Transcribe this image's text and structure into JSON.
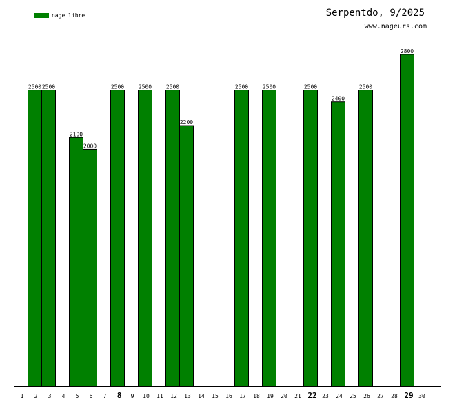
{
  "chart_data": {
    "type": "bar",
    "title": "Serpentdo, 9/2025",
    "subtitle": "www.nageurs.com",
    "legend": {
      "position": "top-left",
      "label": "nage libre",
      "color": "#008000"
    },
    "categories": [
      "1",
      "2",
      "3",
      "4",
      "5",
      "6",
      "7",
      "8",
      "9",
      "10",
      "11",
      "12",
      "13",
      "14",
      "15",
      "16",
      "17",
      "18",
      "19",
      "20",
      "21",
      "22",
      "23",
      "24",
      "25",
      "26",
      "27",
      "28",
      "29",
      "30"
    ],
    "highlighted_categories": [
      "8",
      "22",
      "29"
    ],
    "series": [
      {
        "name": "nage libre",
        "color": "#008000",
        "values": [
          0,
          2500,
          2500,
          0,
          2100,
          2000,
          0,
          2500,
          0,
          2500,
          0,
          2500,
          2200,
          0,
          0,
          0,
          2500,
          0,
          2500,
          0,
          0,
          2500,
          0,
          2400,
          0,
          2500,
          0,
          0,
          2800,
          0
        ]
      }
    ],
    "ylim": [
      0,
      2800
    ],
    "xlabel": "",
    "ylabel": "",
    "grid": false
  }
}
